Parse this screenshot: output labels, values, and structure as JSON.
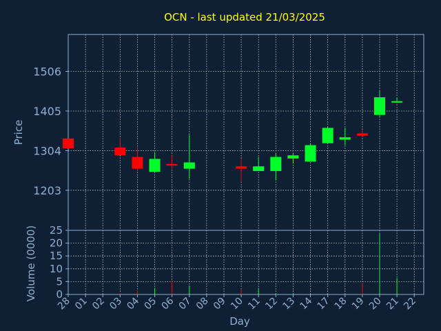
{
  "chart_data": {
    "type": "candlestick",
    "title": "OCN - last updated 21/03/2025",
    "price_panel": {
      "ylabel": "Price",
      "ylim": [
        1101,
        1600
      ],
      "yticks": [
        1203,
        1304,
        1405,
        1506
      ],
      "grid": true
    },
    "volume_panel": {
      "ylabel": "Volume (0000)",
      "ylim": [
        0,
        25
      ],
      "yticks": [
        0,
        5,
        10,
        15,
        20,
        25
      ],
      "grid": true
    },
    "xlabel": "Day",
    "x_tick_labels": [
      "28",
      "01",
      "02",
      "03",
      "04",
      "05",
      "06",
      "07",
      "08",
      "09",
      "10",
      "11",
      "12",
      "13",
      "14",
      "17",
      "18",
      "19",
      "20",
      "21",
      "22"
    ],
    "candles": [
      {
        "day": "28",
        "open": 1335,
        "high": 1335,
        "low": 1310,
        "close": 1310,
        "volume": 0
      },
      {
        "day": "03",
        "open": 1312,
        "high": 1335,
        "low": 1292,
        "close": 1292,
        "volume": 0.5
      },
      {
        "day": "04",
        "open": 1288,
        "high": 1310,
        "low": 1254,
        "close": 1258,
        "volume": 1.5
      },
      {
        "day": "05",
        "open": 1250,
        "high": 1300,
        "low": 1248,
        "close": 1283,
        "volume": 2.5
      },
      {
        "day": "06",
        "open": 1270,
        "high": 1292,
        "low": 1258,
        "close": 1266,
        "volume": 5.5
      },
      {
        "day": "07",
        "open": 1258,
        "high": 1345,
        "low": 1232,
        "close": 1274,
        "volume": 3.5
      },
      {
        "day": "10",
        "open": 1264,
        "high": 1283,
        "low": 1224,
        "close": 1258,
        "volume": 2.2
      },
      {
        "day": "11",
        "open": 1252,
        "high": 1288,
        "low": 1252,
        "close": 1264,
        "volume": 2.5
      },
      {
        "day": "12",
        "open": 1252,
        "high": 1296,
        "low": 1228,
        "close": 1288,
        "volume": 0.5
      },
      {
        "day": "13",
        "open": 1284,
        "high": 1296,
        "low": 1272,
        "close": 1292,
        "volume": 0.3
      },
      {
        "day": "14",
        "open": 1276,
        "high": 1322,
        "low": 1276,
        "close": 1318,
        "volume": 0
      },
      {
        "day": "17",
        "open": 1323,
        "high": 1365,
        "low": 1323,
        "close": 1362,
        "volume": 0
      },
      {
        "day": "18",
        "open": 1332,
        "high": 1362,
        "low": 1318,
        "close": 1338,
        "volume": 0
      },
      {
        "day": "19",
        "open": 1348,
        "high": 1358,
        "low": 1340,
        "close": 1342,
        "volume": 4.5
      },
      {
        "day": "20",
        "open": 1395,
        "high": 1456,
        "low": 1390,
        "close": 1440,
        "volume": 24
      },
      {
        "day": "21",
        "open": 1428,
        "high": 1438,
        "low": 1425,
        "close": 1430,
        "volume": 6.5
      }
    ],
    "colors": {
      "background": "#0f2035",
      "up": "#00ff28",
      "down": "#ff0000",
      "axis": "#8fb0cf",
      "grid": "#c8c8c8",
      "title": "#ffff00"
    }
  }
}
